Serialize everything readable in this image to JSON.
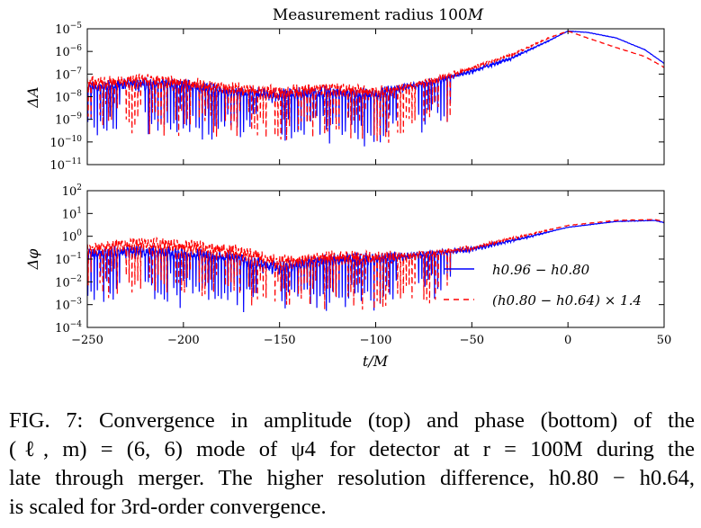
{
  "figure": {
    "title": "Measurement radius 100M",
    "xlabel": "t/M",
    "top_ylabel": "ΔA",
    "bottom_ylabel": "Δφ",
    "legend": {
      "solid_label": "h0.96 − h0.80",
      "dashed_label": "(h0.80 − h0.64) × 1.4"
    }
  },
  "caption": {
    "line1": "FIG. 7: Convergence in amplitude (top) and phase (bottom) of the",
    "line2": "(ℓ, m) = (6, 6) mode of ψ4 for detector at r = 100M during the",
    "line3": "late through merger. The higher resolution difference, h0.80 − h0.64,",
    "line4": "is scaled for 3rd-order convergence."
  },
  "chart_data": [
    {
      "type": "line",
      "title": "Measurement radius 100M",
      "xlabel": "",
      "ylabel": "ΔA",
      "xlim": [
        -250,
        50
      ],
      "ylim": [
        1e-11,
        1e-05
      ],
      "yscale": "log",
      "xticks": [
        -250,
        -200,
        -150,
        -100,
        -50,
        0,
        50
      ],
      "yticks": [
        "10^-11",
        "10^-10",
        "10^-9",
        "10^-8",
        "10^-7",
        "10^-6",
        "10^-5"
      ],
      "series": [
        {
          "name": "h0.96 − h0.80",
          "style": "solid",
          "color": "#0000ff",
          "x": [
            -250,
            -225,
            -200,
            -175,
            -150,
            -125,
            -100,
            -85,
            -70,
            -50,
            -30,
            -10,
            0,
            10,
            25,
            40,
            50
          ],
          "y": [
            3e-08,
            5e-08,
            4e-08,
            2e-08,
            1.5e-08,
            2e-08,
            1.5e-08,
            3e-08,
            5e-08,
            1.5e-07,
            5e-07,
            3e-06,
            8e-06,
            7e-06,
            4e-06,
            1.2e-06,
            3e-07
          ]
        },
        {
          "name": "(h0.80 − h0.64) × 1.4",
          "style": "dashed",
          "color": "#ff0000",
          "x": [
            -250,
            -225,
            -200,
            -175,
            -150,
            -125,
            -100,
            -85,
            -70,
            -50,
            -30,
            -10,
            0,
            10,
            25,
            40,
            50
          ],
          "y": [
            5e-08,
            7e-08,
            5e-08,
            3e-08,
            2e-08,
            3e-08,
            2e-08,
            3e-08,
            6e-08,
            2e-07,
            7e-07,
            4e-06,
            8e-06,
            4e-06,
            1.5e-06,
            6e-07,
            2e-07
          ]
        }
      ]
    },
    {
      "type": "line",
      "title": "",
      "xlabel": "t/M",
      "ylabel": "Δφ",
      "xlim": [
        -250,
        50
      ],
      "ylim": [
        0.0001,
        100.0
      ],
      "yscale": "log",
      "xticks": [
        -250,
        -200,
        -150,
        -100,
        -50,
        0,
        50
      ],
      "yticks": [
        "10^-4",
        "10^-3",
        "10^-2",
        "10^-1",
        "10^0",
        "10^1",
        "10^2"
      ],
      "series": [
        {
          "name": "h0.96 − h0.80",
          "style": "solid",
          "color": "#0000ff",
          "x": [
            -250,
            -225,
            -200,
            -175,
            -150,
            -125,
            -100,
            -85,
            -70,
            -50,
            -25,
            0,
            25,
            45,
            50
          ],
          "y": [
            0.2,
            0.3,
            0.2,
            0.15,
            0.05,
            0.12,
            0.12,
            0.15,
            0.2,
            0.3,
            0.8,
            2.5,
            4.5,
            5,
            4
          ]
        },
        {
          "name": "(h0.80 − h0.64) × 1.4",
          "style": "dashed",
          "color": "#ff0000",
          "x": [
            -250,
            -225,
            -200,
            -175,
            -150,
            -125,
            -100,
            -85,
            -70,
            -50,
            -25,
            0,
            25,
            45,
            50
          ],
          "y": [
            0.4,
            0.6,
            0.5,
            0.3,
            0.1,
            0.15,
            0.15,
            0.15,
            0.2,
            0.35,
            1,
            3,
            5,
            5.5,
            4.5
          ]
        }
      ]
    }
  ]
}
